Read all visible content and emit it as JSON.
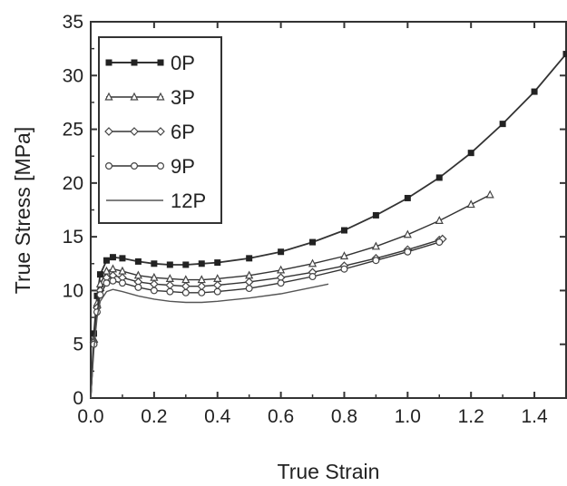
{
  "chart_data": {
    "type": "line",
    "title": "",
    "xlabel": "True Strain",
    "ylabel": "True Stress [MPa]",
    "xlim": [
      0.0,
      1.5
    ],
    "ylim": [
      0,
      35
    ],
    "x_ticks": [
      "0.0",
      "0.2",
      "0.4",
      "0.6",
      "0.8",
      "1.0",
      "1.2",
      "1.4"
    ],
    "y_ticks": [
      "0",
      "5",
      "10",
      "15",
      "20",
      "25",
      "30",
      "35"
    ],
    "x_tick_values": [
      0.0,
      0.2,
      0.4,
      0.6,
      0.8,
      1.0,
      1.2,
      1.4
    ],
    "y_tick_values": [
      0,
      5,
      10,
      15,
      20,
      25,
      30,
      35
    ],
    "grid": false,
    "legend_position": "top-left",
    "series": [
      {
        "name": "0P",
        "marker": "filled-square",
        "x": [
          0.0,
          0.01,
          0.02,
          0.03,
          0.05,
          0.07,
          0.1,
          0.15,
          0.2,
          0.25,
          0.3,
          0.35,
          0.4,
          0.5,
          0.6,
          0.7,
          0.8,
          0.9,
          1.0,
          1.1,
          1.2,
          1.3,
          1.4,
          1.5
        ],
        "y": [
          0,
          6.0,
          9.5,
          11.5,
          12.8,
          13.1,
          13.0,
          12.7,
          12.5,
          12.4,
          12.4,
          12.5,
          12.6,
          13.0,
          13.6,
          14.5,
          15.6,
          17.0,
          18.6,
          20.5,
          22.8,
          25.5,
          28.5,
          32.0
        ]
      },
      {
        "name": "3P",
        "marker": "open-triangle",
        "x": [
          0.0,
          0.01,
          0.02,
          0.03,
          0.05,
          0.07,
          0.1,
          0.15,
          0.2,
          0.25,
          0.3,
          0.35,
          0.4,
          0.5,
          0.6,
          0.7,
          0.8,
          0.9,
          1.0,
          1.1,
          1.2,
          1.26
        ],
        "y": [
          0,
          5.5,
          8.8,
          10.6,
          11.8,
          12.0,
          11.8,
          11.4,
          11.2,
          11.1,
          11.0,
          11.0,
          11.1,
          11.4,
          11.9,
          12.5,
          13.2,
          14.1,
          15.2,
          16.5,
          18.0,
          18.9
        ]
      },
      {
        "name": "6P",
        "marker": "open-diamond",
        "x": [
          0.0,
          0.01,
          0.02,
          0.03,
          0.05,
          0.07,
          0.1,
          0.15,
          0.2,
          0.25,
          0.3,
          0.35,
          0.4,
          0.5,
          0.6,
          0.7,
          0.8,
          0.9,
          1.0,
          1.1,
          1.11
        ],
        "y": [
          0,
          5.2,
          8.4,
          10.0,
          11.2,
          11.4,
          11.2,
          10.8,
          10.6,
          10.5,
          10.4,
          10.4,
          10.5,
          10.8,
          11.2,
          11.7,
          12.3,
          13.0,
          13.8,
          14.7,
          14.8
        ]
      },
      {
        "name": "9P",
        "marker": "open-circle",
        "x": [
          0.0,
          0.01,
          0.02,
          0.03,
          0.05,
          0.07,
          0.1,
          0.15,
          0.2,
          0.25,
          0.3,
          0.35,
          0.4,
          0.5,
          0.6,
          0.7,
          0.8,
          0.9,
          1.0,
          1.1
        ],
        "y": [
          0,
          5.0,
          8.0,
          9.6,
          10.7,
          10.9,
          10.7,
          10.3,
          10.0,
          9.9,
          9.8,
          9.8,
          9.9,
          10.2,
          10.7,
          11.3,
          12.0,
          12.8,
          13.6,
          14.5
        ]
      },
      {
        "name": "12P",
        "marker": "none",
        "x": [
          0.0,
          0.01,
          0.02,
          0.03,
          0.05,
          0.07,
          0.1,
          0.15,
          0.2,
          0.25,
          0.3,
          0.35,
          0.4,
          0.5,
          0.6,
          0.7,
          0.75
        ],
        "y": [
          0,
          4.5,
          7.5,
          9.0,
          9.9,
          10.1,
          9.9,
          9.5,
          9.2,
          9.0,
          8.9,
          8.9,
          9.0,
          9.3,
          9.7,
          10.3,
          10.6
        ]
      }
    ]
  }
}
